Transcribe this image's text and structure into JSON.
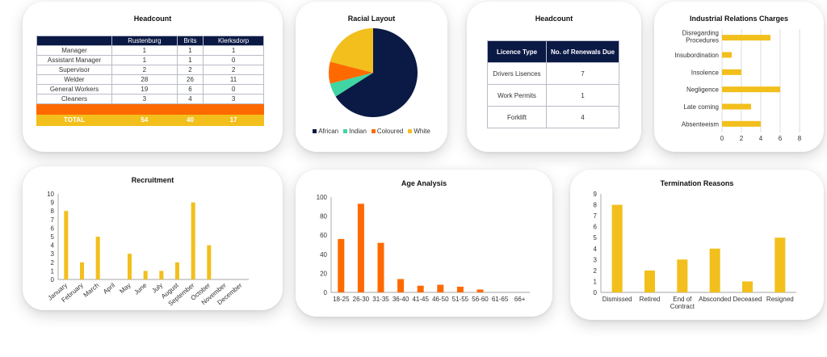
{
  "headcount_table": {
    "title": "Headcount",
    "columns": [
      "",
      "Rustenburg",
      "Brits",
      "Klerksdorp"
    ],
    "rows": [
      [
        "Manager",
        "1",
        "1",
        "1"
      ],
      [
        "Assistant Manager",
        "1",
        "1",
        "0"
      ],
      [
        "Supervisor",
        "2",
        "2",
        "2"
      ],
      [
        "Welder",
        "28",
        "26",
        "11"
      ],
      [
        "General Workers",
        "19",
        "6",
        "0"
      ],
      [
        "Cleaners",
        "3",
        "4",
        "3"
      ]
    ],
    "total": [
      "TOTAL",
      "54",
      "40",
      "17"
    ],
    "colors": {
      "header": "#0b1945",
      "orange": "#ff6a00",
      "total": "#f2bf1c"
    }
  },
  "licence_table": {
    "title": "Headcount",
    "columns": [
      "Licence Type",
      "No. of Renewals Due"
    ],
    "rows": [
      [
        "Drivers Lisences",
        "7"
      ],
      [
        "Work Permits",
        "1"
      ],
      [
        "Forklift",
        "4"
      ]
    ]
  },
  "chart_data": [
    {
      "id": "racial",
      "type": "pie",
      "title": "Racial Layout",
      "categories": [
        "African",
        "Indian",
        "Coloured",
        "White"
      ],
      "values": [
        66,
        5,
        8,
        21
      ],
      "colors": [
        "#0b1945",
        "#3fd6a4",
        "#ff6a00",
        "#f2bf1c"
      ],
      "legend": "bottom"
    },
    {
      "id": "ir",
      "type": "bar",
      "orientation": "horizontal",
      "title": "Industrial Relations Charges",
      "categories": [
        "Disregarding Procedures",
        "Insubordination",
        "Insolence",
        "Negligence",
        "Late coming",
        "Absenteeism"
      ],
      "values": [
        5,
        1,
        2,
        6,
        3,
        4
      ],
      "xlim": [
        0,
        8
      ],
      "ticks": [
        0,
        2,
        4,
        6,
        8
      ],
      "grid": true,
      "color": "#f2bf1c"
    },
    {
      "id": "recruit",
      "type": "bar",
      "title": "Recruitment",
      "categories": [
        "January",
        "February",
        "March",
        "April",
        "May",
        "June",
        "July",
        "August",
        "September",
        "October",
        "November",
        "December"
      ],
      "values": [
        8,
        2,
        5,
        0,
        3,
        1,
        1,
        2,
        9,
        4,
        0,
        0
      ],
      "ylim": [
        0,
        10
      ],
      "ticks": [
        0,
        1,
        2,
        3,
        4,
        5,
        6,
        7,
        8,
        9,
        10
      ],
      "color": "#f2bf1c"
    },
    {
      "id": "age",
      "type": "bar",
      "title": "Age Analysis",
      "categories": [
        "18-25",
        "26-30",
        "31-35",
        "36-40",
        "41-45",
        "46-50",
        "51-55",
        "56-60",
        "61-65",
        "66+"
      ],
      "values": [
        56,
        93,
        52,
        14,
        7,
        8,
        6,
        3,
        0,
        0
      ],
      "ylim": [
        0,
        100
      ],
      "ticks": [
        0,
        20,
        40,
        60,
        80,
        100
      ],
      "color": "#ff6a00"
    },
    {
      "id": "term",
      "type": "bar",
      "title": "Termination Reasons",
      "categories": [
        "Dismissed",
        "Retired",
        "End of Contract",
        "Absconded",
        "Deceased",
        "Resigned"
      ],
      "values": [
        8,
        2,
        3,
        4,
        1,
        5
      ],
      "ylim": [
        0,
        9
      ],
      "ticks": [
        0,
        1,
        2,
        3,
        4,
        5,
        6,
        7,
        8,
        9
      ],
      "color": "#f2bf1c"
    }
  ]
}
